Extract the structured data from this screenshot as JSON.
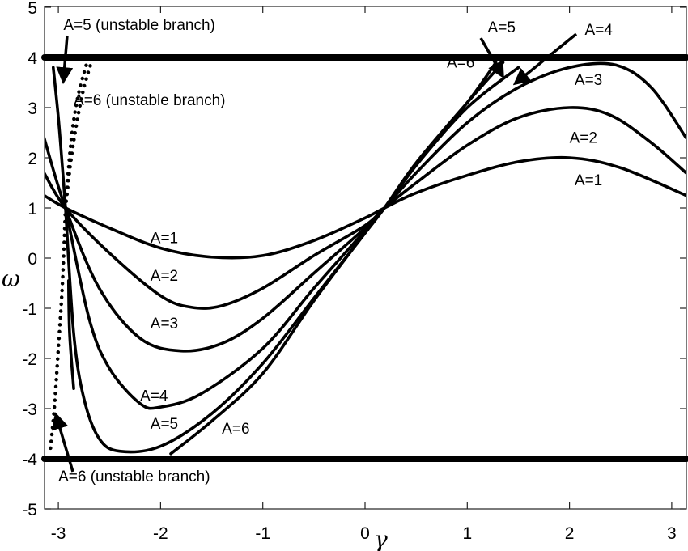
{
  "chart_data": {
    "type": "line",
    "title": "",
    "xlabel": "γ",
    "ylabel": "ω",
    "xlim": [
      -3.14,
      3.14
    ],
    "ylim": [
      -5,
      5
    ],
    "xticks": [
      -3,
      -2,
      -1,
      0,
      1,
      2,
      3
    ],
    "yticks": [
      -5,
      -4,
      -3,
      -2,
      -1,
      0,
      1,
      2,
      3,
      4,
      5
    ],
    "grid": false,
    "legend": "none (inline annotations)",
    "bounds": [
      {
        "name": "upper bound",
        "y": 4
      },
      {
        "name": "lower bound",
        "y": -4
      }
    ],
    "series": [
      {
        "name": "A=1",
        "style": "solid",
        "x": [
          -3.14,
          -2.93,
          -2.5,
          -2.0,
          -1.5,
          -1.0,
          -0.5,
          0.0,
          0.19,
          0.5,
          1.0,
          1.5,
          2.0,
          2.5,
          3.14
        ],
        "y": [
          1.25,
          1.0,
          0.6,
          0.2,
          0.02,
          0.05,
          0.35,
          0.8,
          1.0,
          1.3,
          1.65,
          1.92,
          2.0,
          1.8,
          1.25
        ]
      },
      {
        "name": "A=2",
        "style": "solid",
        "x": [
          -3.14,
          -2.93,
          -2.5,
          -2.0,
          -1.7,
          -1.4,
          -1.0,
          -0.5,
          0.0,
          0.19,
          0.5,
          1.0,
          1.5,
          2.0,
          2.4,
          2.8,
          3.14
        ],
        "y": [
          1.7,
          1.0,
          0.1,
          -0.75,
          -0.98,
          -0.95,
          -0.6,
          0.05,
          0.65,
          1.0,
          1.5,
          2.25,
          2.8,
          3.0,
          2.85,
          2.3,
          1.7
        ]
      },
      {
        "name": "A=3",
        "style": "solid",
        "x": [
          -3.14,
          -2.93,
          -2.6,
          -2.2,
          -1.8,
          -1.4,
          -1.0,
          -0.5,
          0.0,
          0.19,
          0.5,
          1.0,
          1.5,
          2.0,
          2.45,
          2.8,
          3.14
        ],
        "y": [
          2.4,
          1.0,
          -0.6,
          -1.6,
          -1.85,
          -1.7,
          -1.2,
          -0.3,
          0.6,
          1.0,
          1.7,
          2.7,
          3.4,
          3.8,
          3.85,
          3.4,
          2.4
        ]
      },
      {
        "name": "A=4",
        "style": "solid",
        "x": [
          -2.93,
          -2.7,
          -2.5,
          -2.2,
          -2.0,
          -1.6,
          -1.0,
          -0.5,
          0.0,
          0.19,
          0.5,
          1.0,
          1.5
        ],
        "y": [
          1.0,
          -1.2,
          -2.2,
          -2.9,
          -2.97,
          -2.7,
          -1.8,
          -0.6,
          0.55,
          1.0,
          1.85,
          3.0,
          3.8
        ]
      },
      {
        "name": "A=5",
        "style": "solid",
        "x": [
          -2.93,
          -2.85,
          -2.75,
          -2.6,
          -2.4,
          -2.0,
          -1.5,
          -1.0,
          -0.5,
          0.0,
          0.19,
          0.5,
          1.0,
          1.35
        ],
        "y": [
          1.0,
          -1.5,
          -2.8,
          -3.6,
          -3.85,
          -3.75,
          -3.1,
          -2.1,
          -0.8,
          0.5,
          1.0,
          1.9,
          3.1,
          3.9
        ]
      },
      {
        "name": "A=6",
        "style": "solid",
        "x": [
          -1.9,
          -1.5,
          -1.0,
          -0.5,
          0.0,
          0.19,
          0.5,
          1.0,
          1.28
        ],
        "y": [
          -3.9,
          -3.25,
          -2.3,
          -0.85,
          0.5,
          1.0,
          1.85,
          3.1,
          3.9
        ]
      },
      {
        "name": "A=6 stable left segment",
        "style": "solid",
        "x": [
          -2.9,
          -2.89,
          -2.85
        ],
        "y": [
          -0.45,
          -1.5,
          -2.6
        ]
      },
      {
        "name": "A=5 left branch (upper)",
        "style": "solid",
        "x": [
          -3.05,
          -3.0,
          -2.96,
          -2.93
        ],
        "y": [
          3.8,
          2.8,
          1.8,
          1.0
        ]
      },
      {
        "name": "A=5 (unstable branch)",
        "style": "dotted",
        "x": [
          -2.93,
          -2.9,
          -2.86,
          -2.8,
          -2.72
        ],
        "y": [
          1.0,
          1.8,
          2.6,
          3.3,
          3.9
        ]
      },
      {
        "name": "A=6 (unstable branch)",
        "style": "dotted",
        "x": [
          -2.93,
          -2.88,
          -2.82,
          -2.75,
          -2.67
        ],
        "y": [
          1.0,
          1.9,
          2.7,
          3.4,
          3.95
        ]
      },
      {
        "name": "A=6 (unstable branch, lower)",
        "style": "dotted",
        "x": [
          -2.93,
          -2.96,
          -3.0,
          -3.04,
          -3.08
        ],
        "y": [
          1.0,
          -0.5,
          -1.8,
          -3.0,
          -3.85
        ]
      }
    ],
    "annotations": [
      {
        "text": "A=5 (unstable branch)",
        "x": -2.95,
        "y": 4.55,
        "arrow_to": [
          -2.95,
          3.55
        ]
      },
      {
        "text": "A=6 (unstable branch)",
        "x": -2.85,
        "y": 3.05
      },
      {
        "text": "A=6 (unstable branch)",
        "x": -3.0,
        "y": -4.45,
        "arrow_to": [
          -3.02,
          -3.15
        ]
      },
      {
        "text": "A=1",
        "x": -2.1,
        "y": 0.3
      },
      {
        "text": "A=2",
        "x": -2.1,
        "y": -0.45
      },
      {
        "text": "A=3",
        "x": -2.1,
        "y": -1.4
      },
      {
        "text": "A=4",
        "x": -2.2,
        "y": -2.85
      },
      {
        "text": "A=5",
        "x": -2.1,
        "y": -3.4
      },
      {
        "text": "A=6",
        "x": -1.4,
        "y": -3.5
      },
      {
        "text": "A=5",
        "x": 1.2,
        "y": 4.5,
        "arrow_to": [
          1.34,
          3.65
        ]
      },
      {
        "text": "A=6",
        "x": 0.8,
        "y": 3.8
      },
      {
        "text": "A=4",
        "x": 2.15,
        "y": 4.45,
        "arrow_to": [
          1.48,
          3.5
        ]
      },
      {
        "text": "A=3",
        "x": 2.05,
        "y": 3.45
      },
      {
        "text": "A=2",
        "x": 2.0,
        "y": 2.3
      },
      {
        "text": "A=1",
        "x": 2.05,
        "y": 1.45
      }
    ]
  }
}
